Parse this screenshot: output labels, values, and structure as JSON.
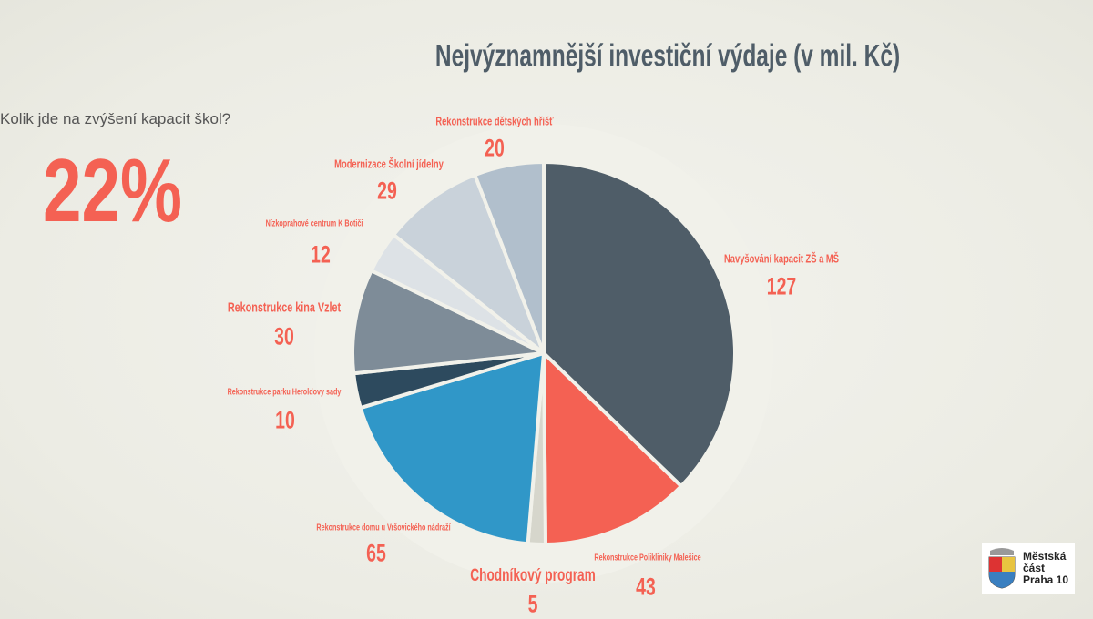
{
  "question": "Kolik jde na zvýšení kapacit škol?",
  "highlight": "22%",
  "logo": {
    "lines": [
      "Městská",
      "část",
      "Praha 10"
    ]
  },
  "chart_data": {
    "type": "pie",
    "title": "Nejvýznamnější investiční výdaje (v mil. Kč)",
    "start": "top",
    "direction": "clockwise",
    "slices": [
      {
        "label": "Navyšování kapacit ZŠ a MŠ",
        "value": 127,
        "display": "127",
        "color": "#4f5d68"
      },
      {
        "label": "Rekonstrukce Polikliniky Malešice",
        "value": 43,
        "display": "43",
        "color": "#f46153"
      },
      {
        "label": "Chodníkový program",
        "value": 5,
        "display": "5",
        "color": "#d6d6cc"
      },
      {
        "label": "Rekonstrukce domu u Vršovického nádraží",
        "value": 65,
        "display": "65",
        "color": "#3097c8"
      },
      {
        "label": "Rekonstrukce parku Heroldovy sady",
        "value": 10,
        "display": "10",
        "color": "#2d4a5e"
      },
      {
        "label": "Rekonstrukce kina Vzlet",
        "value": 30,
        "display": "30",
        "color": "#7e8c98"
      },
      {
        "label": "Nízkoprahové centrum K Botiči",
        "value": 12,
        "display": "12",
        "color": "#dde2e6"
      },
      {
        "label": "Modernizace Školní jídelny",
        "value": 29,
        "display": "29",
        "color": "#c9d2da"
      },
      {
        "label": "Rekonstrukce dětských hřišť",
        "value": 20,
        "display": "20",
        "color": "#b1bfcc"
      }
    ]
  }
}
